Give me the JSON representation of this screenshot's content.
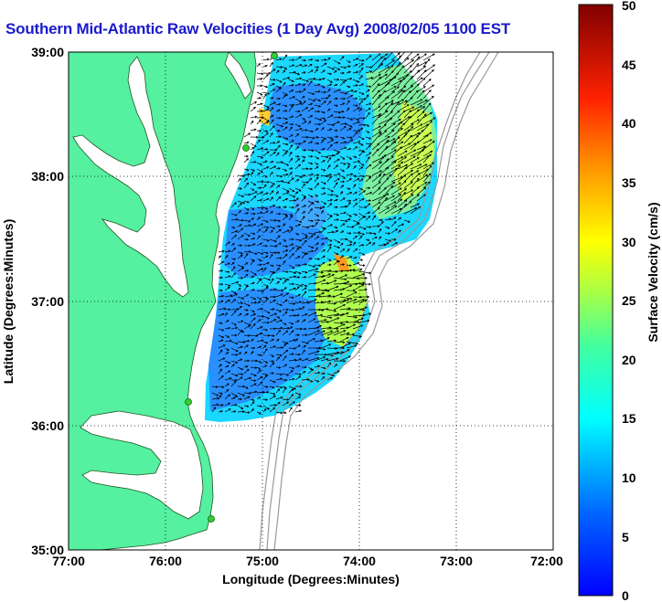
{
  "title": "Southern Mid-Atlantic Raw Velocities (1 Day Avg) 2008/02/05 1100 EST",
  "map": {
    "x_label": "Longitude (Degrees:Minutes)",
    "y_label": "Latitude (Degrees:Minutes)",
    "x_ticks": [
      "77:00",
      "76:00",
      "75:00",
      "74:00",
      "73:00",
      "72:00"
    ],
    "y_ticks": [
      "39:00",
      "38:00",
      "37:00",
      "36:00",
      "35:00"
    ],
    "x_range_deg_west": [
      77,
      72
    ],
    "y_range_deg_north": [
      35,
      39
    ],
    "grid": "dotted",
    "land_color": "#55f0a0",
    "ocean_color": "#ffffff",
    "station_color": "#33cc33"
  },
  "colorbar": {
    "label": "Surface Velocity (cm/s)",
    "ticks": [
      "0",
      "5",
      "10",
      "15",
      "20",
      "25",
      "30",
      "35",
      "40",
      "45",
      "50"
    ],
    "min": 0,
    "max": 50,
    "colormap": "jet"
  }
}
